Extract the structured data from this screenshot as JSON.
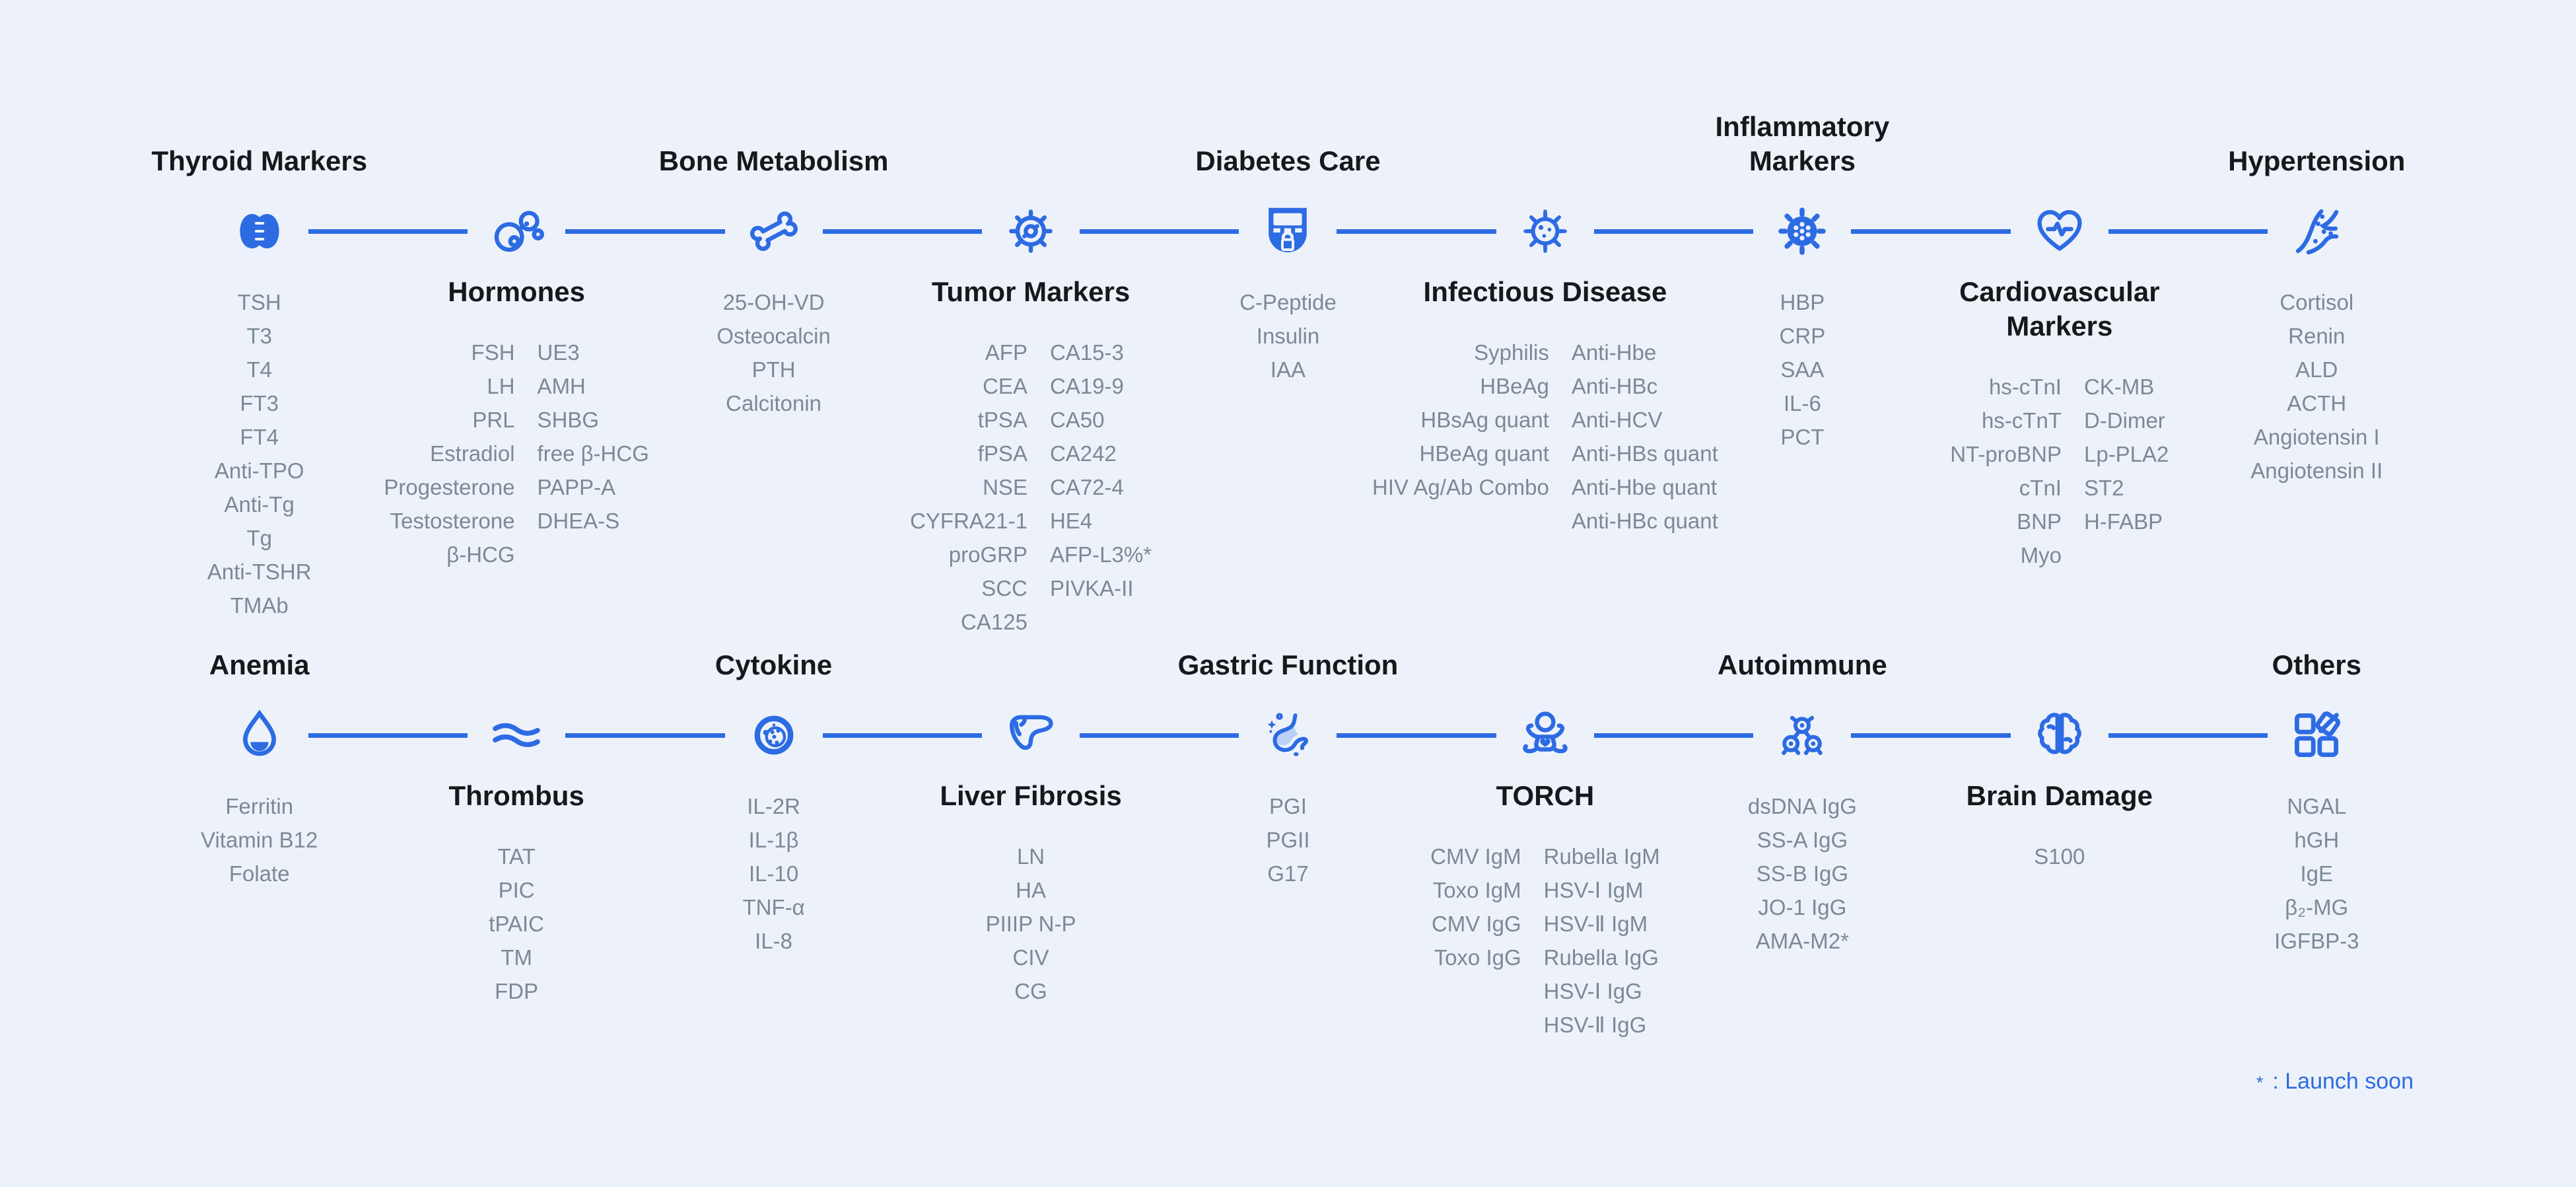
{
  "page": {
    "background": "#EDF2FA",
    "accent": "#2D6BE3",
    "title_color": "#16181A",
    "item_color": "#7B8A94",
    "footnote": {
      "star": "*",
      "label": ": Launch soon"
    }
  },
  "rows": [
    {
      "name": "timeline-row-1",
      "categories": [
        {
          "title_lines": [
            "Thyroid Markers"
          ],
          "title_position": "above",
          "icon": "thyroid-gland-icon",
          "list": {
            "type": "single",
            "items": [
              "TSH",
              "T3",
              "T4",
              "FT3",
              "FT4",
              "Anti-TPO",
              "Anti-Tg",
              "Tg",
              "Anti-TSHR",
              "TMAb"
            ]
          }
        },
        {
          "title_lines": [
            "Hormones"
          ],
          "title_position": "below",
          "icon": "molecule-bubbles-icon",
          "list": {
            "type": "double",
            "left": [
              "FSH",
              "LH",
              "PRL",
              "Estradiol",
              "Progesterone",
              "Testosterone",
              "β-HCG"
            ],
            "right": [
              "UE3",
              "AMH",
              "SHBG",
              "free β-HCG",
              "PAPP-A",
              "DHEA-S"
            ]
          }
        },
        {
          "title_lines": [
            "Bone Metabolism"
          ],
          "title_position": "above",
          "icon": "bone-joint-icon",
          "list": {
            "type": "single",
            "items": [
              "25-OH-VD",
              "Osteocalcin",
              "PTH",
              "Calcitonin"
            ]
          }
        },
        {
          "title_lines": [
            "Tumor Markers"
          ],
          "title_position": "below",
          "icon": "gear-cell-icon",
          "list": {
            "type": "double",
            "left": [
              "AFP",
              "CEA",
              "tPSA",
              "fPSA",
              "NSE",
              "CYFRA21-1",
              "proGRP",
              "SCC",
              "CA125"
            ],
            "right": [
              "CA15-3",
              "CA19-9",
              "CA50",
              "CA242",
              "CA72-4",
              "HE4",
              "AFP-L3%*",
              "PIVKA-II"
            ]
          }
        },
        {
          "title_lines": [
            "Diabetes Care"
          ],
          "title_position": "above",
          "icon": "glucose-meter-icon",
          "list": {
            "type": "single",
            "items": [
              "C-Peptide",
              "Insulin",
              "IAA"
            ]
          }
        },
        {
          "title_lines": [
            "Infectious Disease"
          ],
          "title_position": "below",
          "icon": "virus-outline-icon",
          "list": {
            "type": "double",
            "left": [
              "Syphilis",
              "HBeAg",
              "HBsAg quant",
              "HBeAg quant",
              "HIV Ag/Ab Combo"
            ],
            "right": [
              "Anti-Hbe",
              "Anti-HBc",
              "Anti-HCV",
              "Anti-HBs quant",
              "Anti-Hbe quant",
              "Anti-HBc quant"
            ]
          }
        },
        {
          "title_lines": [
            "Inflammatory",
            "Markers"
          ],
          "title_position": "above",
          "icon": "virus-particle-icon",
          "list": {
            "type": "single",
            "items": [
              "HBP",
              "CRP",
              "SAA",
              "IL-6",
              "PCT"
            ]
          }
        },
        {
          "title_lines": [
            "Cardiovascular",
            "Markers"
          ],
          "title_position": "below",
          "icon": "heart-pulse-icon",
          "list": {
            "type": "double",
            "left": [
              "hs-cTnI",
              "hs-cTnT",
              "NT-proBNP",
              "cTnI",
              "BNP",
              "Myo"
            ],
            "right": [
              "CK-MB",
              "D-Dimer",
              "Lp-PLA2",
              "ST2",
              "H-FABP"
            ]
          }
        },
        {
          "title_lines": [
            "Hypertension"
          ],
          "title_position": "above",
          "icon": "blood-vessel-icon",
          "list": {
            "type": "single",
            "items": [
              "Cortisol",
              "Renin",
              "ALD",
              "ACTH",
              "Angiotensin I",
              "Angiotensin II"
            ]
          }
        }
      ]
    },
    {
      "name": "timeline-row-2",
      "categories": [
        {
          "title_lines": [
            "Anemia"
          ],
          "title_position": "above",
          "icon": "blood-drop-icon",
          "list": {
            "type": "single",
            "items": [
              "Ferritin",
              "Vitamin B12",
              "Folate"
            ]
          }
        },
        {
          "title_lines": [
            "Thrombus"
          ],
          "title_position": "below",
          "icon": "vessel-wave-icon",
          "list": {
            "type": "single",
            "items": [
              "TAT",
              "PIC",
              "tPAIC",
              "TM",
              "FDP"
            ]
          }
        },
        {
          "title_lines": [
            "Cytokine"
          ],
          "title_position": "above",
          "icon": "cell-cytokine-icon",
          "list": {
            "type": "single",
            "items": [
              "IL-2R",
              "IL-1β",
              "IL-10",
              "TNF-α",
              "IL-8"
            ]
          }
        },
        {
          "title_lines": [
            "Liver Fibrosis"
          ],
          "title_position": "below",
          "icon": "liver-icon",
          "list": {
            "type": "single",
            "items": [
              "LN",
              "HA",
              "PIIIP N-P",
              "CIV",
              "CG"
            ]
          }
        },
        {
          "title_lines": [
            "Gastric Function"
          ],
          "title_position": "above",
          "icon": "stomach-icon",
          "list": {
            "type": "single",
            "items": [
              "PGI",
              "PGII",
              "G17"
            ]
          }
        },
        {
          "title_lines": [
            "TORCH"
          ],
          "title_position": "below",
          "icon": "baby-icon",
          "list": {
            "type": "double",
            "left": [
              "CMV IgM",
              "Toxo IgM",
              "CMV IgG",
              "Toxo IgG"
            ],
            "right": [
              "Rubella IgM",
              "HSV-Ⅰ IgM",
              "HSV-Ⅱ IgM",
              "Rubella IgG",
              "HSV-Ⅰ IgG",
              "HSV-Ⅱ IgG"
            ]
          }
        },
        {
          "title_lines": [
            "Autoimmune"
          ],
          "title_position": "above",
          "icon": "molecule-network-icon",
          "list": {
            "type": "single",
            "items": [
              "dsDNA IgG",
              "SS-A IgG",
              "SS-B IgG",
              "JO-1 IgG",
              "AMA-M2*"
            ]
          }
        },
        {
          "title_lines": [
            "Brain Damage"
          ],
          "title_position": "below",
          "icon": "brain-icon",
          "list": {
            "type": "single",
            "items": [
              "S100"
            ]
          }
        },
        {
          "title_lines": [
            "Others"
          ],
          "title_position": "above",
          "icon": "blocks-icon",
          "list": {
            "type": "single",
            "items": [
              "NGAL",
              "hGH",
              "IgE",
              "β₂-MG",
              "IGFBP-3"
            ]
          }
        }
      ]
    }
  ]
}
